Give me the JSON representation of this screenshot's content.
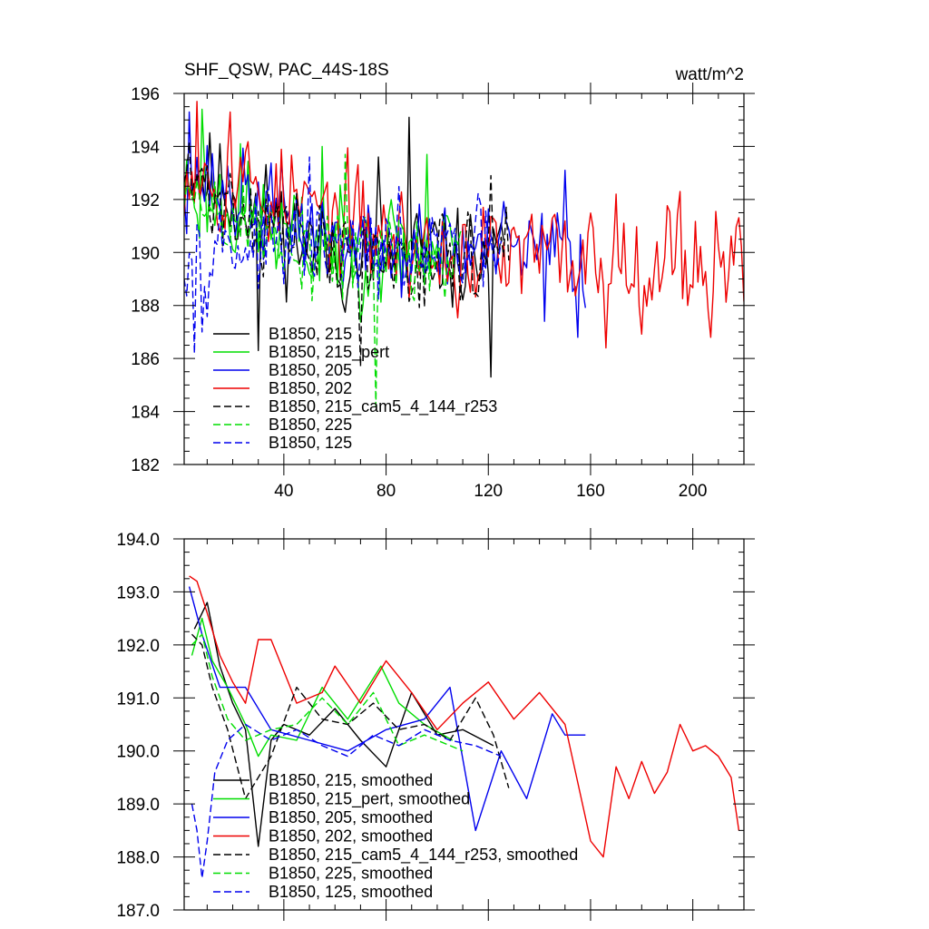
{
  "chart_data": [
    {
      "type": "line",
      "title": "SHF_QSW, PAC_44S-18S",
      "units_label": "watt/m^2",
      "xlim": [
        1,
        220
      ],
      "ylim": [
        182,
        196
      ],
      "xticks": [
        40,
        80,
        120,
        160,
        200
      ],
      "xtick_labels": [
        "40",
        "80",
        "120",
        "160",
        "200"
      ],
      "yticks": [
        182,
        184,
        186,
        188,
        190,
        192,
        194,
        196
      ],
      "ytick_labels": [
        "182",
        "184",
        "186",
        "188",
        "190",
        "192",
        "194",
        "196"
      ],
      "legend": [
        {
          "label": "B1850, 215",
          "color": "#000000",
          "dash": "solid"
        },
        {
          "label": "B1850, 215_pert",
          "color": "#00dd00",
          "dash": "solid"
        },
        {
          "label": "B1850, 205",
          "color": "#0000ee",
          "dash": "solid"
        },
        {
          "label": "B1850, 202",
          "color": "#ee0000",
          "dash": "solid"
        },
        {
          "label": "B1850, 215_cam5_4_144_r253",
          "color": "#000000",
          "dash": "dashed"
        },
        {
          "label": "B1850, 225",
          "color": "#00dd00",
          "dash": "dashed"
        },
        {
          "label": "B1850, 125",
          "color": "#0000ee",
          "dash": "dashed"
        }
      ],
      "series": [
        {
          "name": "B1850, 215",
          "color": "#000000",
          "dash": "solid",
          "length": 126,
          "start": 193.4,
          "end": 189.8,
          "amp": 1.25,
          "seed": 11,
          "spikes": [
            [
              30,
              186.3
            ],
            [
              89,
              195.1
            ],
            [
              121,
              185.3
            ],
            [
              77,
              193.6
            ]
          ]
        },
        {
          "name": "B1850, 215_pert",
          "color": "#00dd00",
          "dash": "solid",
          "length": 106,
          "start": 192.6,
          "end": 190.2,
          "amp": 1.3,
          "seed": 23,
          "spikes": [
            [
              8,
              195.4
            ],
            [
              23,
              194.1
            ],
            [
              55,
              194.0
            ],
            [
              96,
              193.7
            ]
          ]
        },
        {
          "name": "B1850, 205",
          "color": "#0000ee",
          "dash": "solid",
          "length": 158,
          "start": 193.0,
          "end": 190.0,
          "amp": 1.2,
          "seed": 37,
          "spikes": [
            [
              3,
              195.3
            ],
            [
              150,
              193.1
            ],
            [
              155,
              186.8
            ],
            [
              142,
              187.4
            ]
          ]
        },
        {
          "name": "B1850, 202",
          "color": "#ee0000",
          "dash": "solid",
          "length": 220,
          "start": 193.5,
          "end": 189.8,
          "amp": 1.35,
          "seed": 53,
          "spikes": [
            [
              6,
              195.7
            ],
            [
              19,
              195.3
            ],
            [
              166,
              186.4
            ],
            [
              207,
              186.8
            ],
            [
              170,
              192.2
            ],
            [
              195,
              192.3
            ]
          ]
        },
        {
          "name": "B1850, 215_cam5_4_144_r253",
          "color": "#000000",
          "dash": "dashed",
          "length": 128,
          "start": 192.8,
          "end": 189.8,
          "amp": 1.2,
          "seed": 71,
          "spikes": [
            [
              121,
              192.9
            ],
            [
              70,
              185.7
            ]
          ]
        },
        {
          "name": "B1850, 225",
          "color": "#00dd00",
          "dash": "dashed",
          "length": 110,
          "start": 192.0,
          "end": 190.0,
          "amp": 1.25,
          "seed": 89,
          "spikes": [
            [
              76,
              184.2
            ],
            [
              64,
              193.7
            ]
          ]
        },
        {
          "name": "B1850, 125",
          "color": "#0000ee",
          "dash": "dashed",
          "length": 125,
          "start": 190.5,
          "end": 190.0,
          "amp": 1.1,
          "seed": 97,
          "spikes": [
            [
              5,
              186.2
            ],
            [
              8,
              187.0
            ],
            [
              50,
              193.6
            ]
          ]
        }
      ]
    },
    {
      "type": "line",
      "title": "",
      "xlim": [
        1,
        220
      ],
      "ylim": [
        187.0,
        194.0
      ],
      "xticks": [
        40,
        80,
        120,
        160,
        200
      ],
      "xtick_labels": [],
      "yticks": [
        187.0,
        188.0,
        189.0,
        190.0,
        191.0,
        192.0,
        193.0,
        194.0
      ],
      "ytick_labels": [
        "187.0",
        "188.0",
        "189.0",
        "190.0",
        "191.0",
        "192.0",
        "193.0",
        "194.0"
      ],
      "legend": [
        {
          "label": "B1850, 215, smoothed",
          "color": "#000000",
          "dash": "solid"
        },
        {
          "label": "B1850, 215_pert, smoothed",
          "color": "#00dd00",
          "dash": "solid"
        },
        {
          "label": "B1850, 205, smoothed",
          "color": "#0000ee",
          "dash": "solid"
        },
        {
          "label": "B1850, 202, smoothed",
          "color": "#ee0000",
          "dash": "solid"
        },
        {
          "label": "B1850, 215_cam5_4_144_r253, smoothed",
          "color": "#000000",
          "dash": "dashed"
        },
        {
          "label": "B1850, 225, smoothed",
          "color": "#00dd00",
          "dash": "dashed"
        },
        {
          "label": "B1850, 125, smoothed",
          "color": "#0000ee",
          "dash": "dashed"
        }
      ],
      "series": [
        {
          "name": "B1850, 215, smoothed",
          "color": "#000000",
          "dash": "solid",
          "x": [
            5,
            10,
            15,
            20,
            25,
            30,
            35,
            40,
            50,
            60,
            70,
            80,
            90,
            100,
            110,
            122
          ],
          "y": [
            192.3,
            192.8,
            191.6,
            190.9,
            190.4,
            188.2,
            190.2,
            190.5,
            190.3,
            190.8,
            190.2,
            189.7,
            191.1,
            190.3,
            190.4,
            190.1
          ]
        },
        {
          "name": "B1850, 215_pert, smoothed",
          "color": "#00dd00",
          "dash": "solid",
          "x": [
            4,
            8,
            12,
            18,
            25,
            30,
            35,
            45,
            55,
            65,
            78,
            85,
            95,
            106
          ],
          "y": [
            191.8,
            192.5,
            191.7,
            191.2,
            190.5,
            189.9,
            190.3,
            190.2,
            191.2,
            190.6,
            191.6,
            190.9,
            190.5,
            190.2
          ]
        },
        {
          "name": "B1850, 205, smoothed",
          "color": "#0000ee",
          "dash": "solid",
          "x": [
            3,
            8,
            15,
            25,
            35,
            50,
            65,
            80,
            95,
            105,
            115,
            125,
            135,
            145,
            150,
            158
          ],
          "y": [
            193.1,
            192.2,
            191.2,
            191.2,
            190.4,
            190.2,
            190.0,
            190.4,
            190.6,
            191.2,
            188.5,
            190.0,
            189.1,
            190.7,
            190.3,
            190.3
          ]
        },
        {
          "name": "B1850, 202, smoothed",
          "color": "#ee0000",
          "dash": "solid",
          "x": [
            3,
            6,
            10,
            15,
            20,
            25,
            30,
            35,
            45,
            55,
            60,
            70,
            80,
            90,
            100,
            110,
            120,
            130,
            140,
            150,
            160,
            165,
            170,
            175,
            180,
            185,
            190,
            195,
            200,
            205,
            210,
            215,
            218
          ],
          "y": [
            193.3,
            193.2,
            192.6,
            191.8,
            191.3,
            190.9,
            192.1,
            192.1,
            190.9,
            191.1,
            191.6,
            190.9,
            191.7,
            191.1,
            190.4,
            190.9,
            191.3,
            190.6,
            191.1,
            190.5,
            188.3,
            188.0,
            189.7,
            189.1,
            189.8,
            189.2,
            189.6,
            190.5,
            190.0,
            190.1,
            189.9,
            189.5,
            188.5
          ]
        },
        {
          "name": "B1850, 215_cam5_4_144_r253, smoothed",
          "color": "#000000",
          "dash": "dashed",
          "x": [
            4,
            8,
            12,
            18,
            25,
            35,
            45,
            55,
            65,
            75,
            85,
            95,
            105,
            115,
            122,
            128
          ],
          "y": [
            192.2,
            192.0,
            191.2,
            190.4,
            189.1,
            189.9,
            191.2,
            190.6,
            190.5,
            190.9,
            190.4,
            190.5,
            190.2,
            191.0,
            190.3,
            189.3
          ]
        },
        {
          "name": "B1850, 225, smoothed",
          "color": "#00dd00",
          "dash": "dashed",
          "x": [
            4,
            8,
            12,
            18,
            25,
            35,
            45,
            55,
            65,
            75,
            85,
            95,
            110
          ],
          "y": [
            192.0,
            192.2,
            191.4,
            190.6,
            190.2,
            190.4,
            190.5,
            191.0,
            190.5,
            191.1,
            190.1,
            190.3,
            190.0
          ]
        },
        {
          "name": "B1850, 125, smoothed",
          "color": "#0000ee",
          "dash": "dashed",
          "x": [
            4,
            6,
            8,
            10,
            13,
            18,
            25,
            35,
            45,
            55,
            65,
            75,
            85,
            95,
            105,
            115,
            125
          ],
          "y": [
            189.0,
            188.5,
            187.6,
            188.3,
            189.6,
            190.2,
            190.5,
            190.2,
            190.4,
            190.1,
            189.9,
            190.3,
            190.1,
            190.4,
            190.2,
            190.1,
            189.9
          ]
        }
      ]
    }
  ]
}
